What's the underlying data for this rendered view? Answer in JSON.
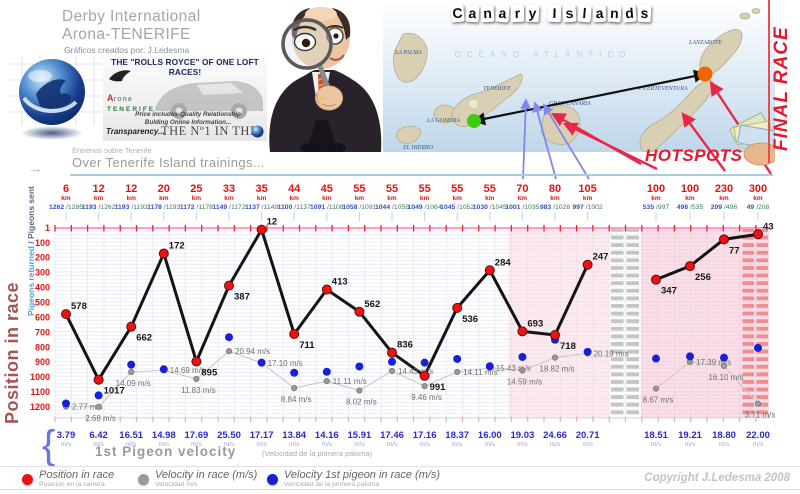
{
  "poster": {
    "title1": "Derby International",
    "title2": "Arona-TENERIFE",
    "credit": "Gráficos creados por: J.Ledesma",
    "copyright": "Copyright J.Ledesma 2008"
  },
  "banner": {
    "headline": "THE \"ROLLS ROYCE\" OF ONE LOFT RACES!",
    "logo_a": "A",
    "logo_rona": "rona",
    "logo_name": "TENERIFE",
    "line1": "Price includes-Quality Relationship",
    "line2": "Bulding Online Information...",
    "line3": "Transparency...",
    "no1": "THE Nº1 IN THE WORLD"
  },
  "map": {
    "title": "Canary Islands",
    "ocean": "OCÉANO ATLÁNTICO",
    "islands": [
      "La Palma",
      "Tenerife",
      "La Gomera",
      "El Hierro",
      "Gran Canaria",
      "Fuerteventura",
      "Lanzarote"
    ],
    "hotspots": "HOTSPOTS",
    "final_race": "FINAL RACE"
  },
  "trainings": {
    "es": "Entrenos sobre Tenerife",
    "en": "Over Tenerife Island trainings..."
  },
  "yaxis": {
    "top_blue": "Pigeons returned",
    "top_gray": " / Pigeons sent",
    "main": "Position in race"
  },
  "velocity_row": {
    "title": "1st Pigeon velocity",
    "subtitle": "(Velocidad de la primera paloma)",
    "units": "m/s"
  },
  "legend": {
    "items": [
      {
        "label": "Position in race",
        "sub": "Posicion en la carrera",
        "color": "#ee1111"
      },
      {
        "label": "Velocity in race (m/s)",
        "sub": "Velocidad m/s",
        "color": "#9a9a9a"
      },
      {
        "label": "Velocity 1st pigeon in race (m/s)",
        "sub": "Velocidad de la primera paloma",
        "color": "#1520d8"
      }
    ]
  },
  "icons": {
    "axis_arrow": "→",
    "brace": "{"
  },
  "chart_data": {
    "type": "line",
    "title": "Over Tenerife Island trainings...",
    "ylabel": "Position in race",
    "ylim": [
      1,
      1200
    ],
    "y_ticks": [
      1,
      100,
      200,
      300,
      400,
      500,
      600,
      700,
      800,
      900,
      1000,
      1100,
      1200
    ],
    "km_unit": "km",
    "gap_after_column": 17,
    "series": [
      {
        "name": "Position in race",
        "color": "#ee1111"
      },
      {
        "name": "Velocity in race (m/s)",
        "color": "#9a9a9a"
      },
      {
        "name": "Velocity 1st pigeon in race (m/s)",
        "color": "#1520d8"
      }
    ],
    "columns": [
      {
        "km": 6,
        "returned": 1262,
        "sent": 1285,
        "position": 578,
        "velocity_race": 2.77,
        "velocity_first": 3.79
      },
      {
        "km": 12,
        "returned": 1193,
        "sent": 1262,
        "position": 1017,
        "velocity_race": 2.68,
        "velocity_first": 6.42
      },
      {
        "km": 12,
        "returned": 1193,
        "sent": 1193,
        "position": 662,
        "velocity_race": 14.09,
        "velocity_first": 16.51
      },
      {
        "km": 20,
        "returned": 1178,
        "sent": 1193,
        "position": 172,
        "velocity_race": 14.69,
        "velocity_first": 14.98
      },
      {
        "km": 25,
        "returned": 1172,
        "sent": 1178,
        "position": 895,
        "velocity_race": 11.83,
        "velocity_first": 17.69
      },
      {
        "km": 33,
        "returned": 1149,
        "sent": 1172,
        "position": 387,
        "velocity_race": 20.94,
        "velocity_first": 25.5
      },
      {
        "km": 35,
        "returned": 1137,
        "sent": 1149,
        "position": 12,
        "velocity_race": 17.1,
        "velocity_first": 17.17
      },
      {
        "km": 44,
        "returned": 1100,
        "sent": 1137,
        "position": 711,
        "velocity_race": 8.84,
        "velocity_first": 13.84
      },
      {
        "km": 45,
        "returned": 1091,
        "sent": 1108,
        "position": 413,
        "velocity_race": 11.11,
        "velocity_first": 14.16
      },
      {
        "km": 55,
        "returned": 1058,
        "sent": 1091,
        "position": 562,
        "velocity_race": 8.02,
        "velocity_first": 15.91
      },
      {
        "km": 55,
        "returned": 1044,
        "sent": 1058,
        "position": 836,
        "velocity_race": 14.43,
        "velocity_first": 17.46
      },
      {
        "km": 55,
        "returned": 1049,
        "sent": 1064,
        "position": 991,
        "velocity_race": 9.46,
        "velocity_first": 17.16
      },
      {
        "km": 55,
        "returned": 1045,
        "sent": 1052,
        "position": 536,
        "velocity_race": 14.11,
        "velocity_first": 18.37
      },
      {
        "km": 55,
        "returned": 1030,
        "sent": 1045,
        "position": 284,
        "velocity_race": 15.43,
        "velocity_first": 16.0
      },
      {
        "km": 70,
        "returned": 1001,
        "sent": 1035,
        "position": 693,
        "velocity_race": 14.59,
        "velocity_first": 19.03
      },
      {
        "km": 80,
        "returned": 983,
        "sent": 1028,
        "position": 718,
        "velocity_race": 18.82,
        "velocity_first": 24.66
      },
      {
        "km": 105,
        "returned": 997,
        "sent": 1002,
        "position": 247,
        "velocity_race": 20.19,
        "velocity_first": 20.71
      },
      {
        "km": 100,
        "returned": 535,
        "sent": 997,
        "position": 347,
        "velocity_race": 8.67,
        "velocity_first": 18.51
      },
      {
        "km": 100,
        "returned": 496,
        "sent": 535,
        "position": 256,
        "velocity_race": 17.39,
        "velocity_first": 19.21
      },
      {
        "km": 230,
        "returned": 209,
        "sent": 496,
        "position": 77,
        "velocity_race": 16.1,
        "velocity_first": 18.8
      },
      {
        "km": 300,
        "returned": 49,
        "sent": 208,
        "position": 43,
        "velocity_race": 3.71,
        "velocity_first": 22.0
      }
    ]
  }
}
